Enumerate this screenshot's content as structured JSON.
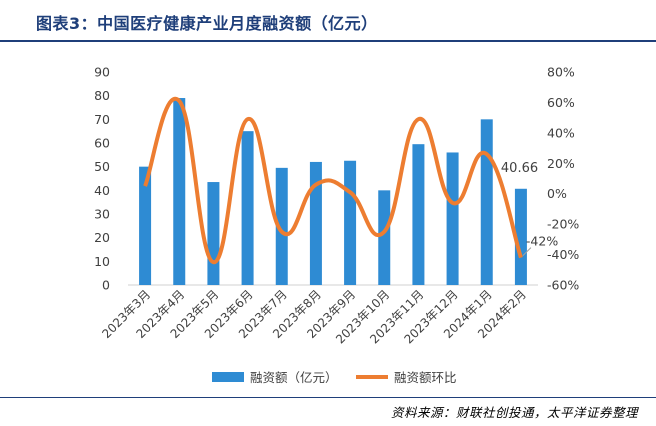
{
  "header": {
    "title": "图表3：中国医疗健康产业月度融资额（亿元）"
  },
  "footer": {
    "source": "资料来源：财联社创投通，太平洋证券整理"
  },
  "chart_data": {
    "type": "bar",
    "title": "",
    "categories": [
      "2023年3月",
      "2023年4月",
      "2023年5月",
      "2023年6月",
      "2023年7月",
      "2023年8月",
      "2023年9月",
      "2023年10月",
      "2023年11月",
      "2023年12月",
      "2024年1月",
      "2024年2月"
    ],
    "series": [
      {
        "name": "融资额（亿元）",
        "type": "bar",
        "axis": "left",
        "color": "#2e8bd3",
        "values": [
          50,
          79,
          43.5,
          65,
          49.5,
          52,
          52.5,
          40,
          59.5,
          56,
          70,
          40.66
        ]
      },
      {
        "name": "融资额环比",
        "type": "line",
        "axis": "right",
        "color": "#ed7d31",
        "unit": "%",
        "values": [
          5,
          61,
          -45,
          49,
          -25,
          6,
          1,
          -25,
          49,
          -6,
          26,
          -42
        ]
      }
    ],
    "left_axis": {
      "min": 0,
      "max": 90,
      "ticks": [
        0,
        10,
        20,
        30,
        40,
        50,
        60,
        70,
        80,
        90
      ]
    },
    "right_axis": {
      "min": -60,
      "max": 80,
      "ticks": [
        -60,
        -40,
        -20,
        0,
        20,
        40,
        60,
        80
      ],
      "tick_labels": [
        "-60%",
        "-40%",
        "-20%",
        "0%",
        "20%",
        "40%",
        "60%",
        "80%"
      ]
    },
    "annotations": [
      {
        "text": "40.66",
        "category": "2024年2月",
        "series": "融资额（亿元）"
      },
      {
        "text": "-42%",
        "category": "2024年2月",
        "series": "融资额环比"
      }
    ],
    "legend": {
      "placement": "bottom",
      "entries": [
        "融资额（亿元）",
        "融资额环比"
      ]
    },
    "grid": false
  }
}
